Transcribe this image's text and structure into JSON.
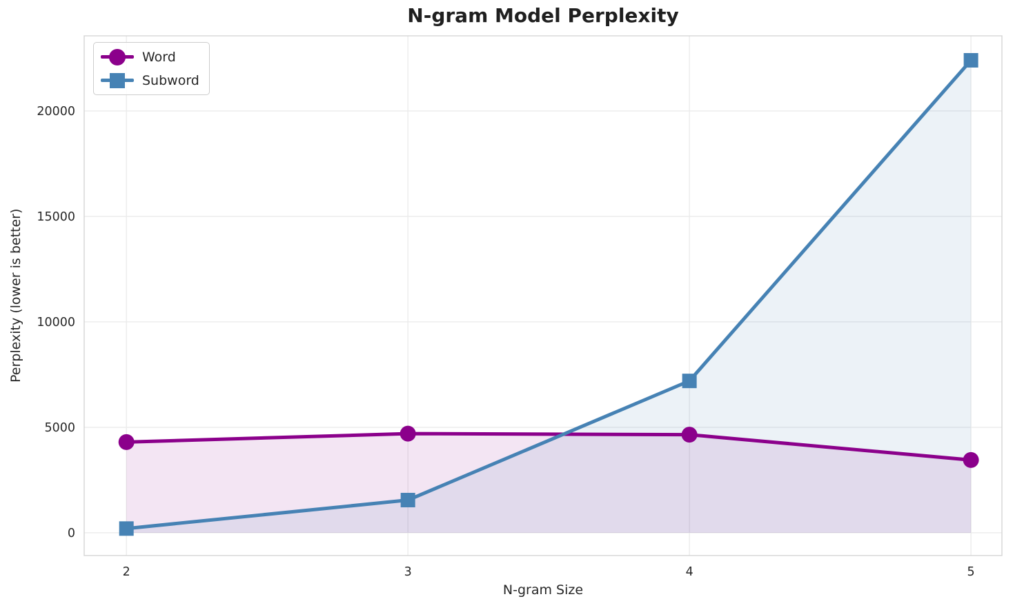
{
  "chart": {
    "title": "N-gram Model Perplexity",
    "xlabel": "N-gram Size",
    "ylabel": "Perplexity (lower is better)"
  },
  "legend": {
    "items": [
      {
        "label": "Word",
        "color": "#8B008B",
        "marker": "circle"
      },
      {
        "label": "Subword",
        "color": "#4682B4",
        "marker": "square"
      }
    ]
  },
  "chart_data": {
    "type": "line",
    "title": "N-gram Model Perplexity",
    "xlabel": "N-gram Size",
    "ylabel": "Perplexity (lower is better)",
    "x": [
      2,
      3,
      4,
      5
    ],
    "series": [
      {
        "name": "Word",
        "color": "#8B008B",
        "marker": "circle",
        "values": [
          4300,
          4700,
          4650,
          3450
        ],
        "fill": true
      },
      {
        "name": "Subword",
        "color": "#4682B4",
        "marker": "square",
        "values": [
          200,
          1550,
          7200,
          22400
        ],
        "fill": true
      }
    ],
    "xticks": [
      2,
      3,
      4,
      5
    ],
    "yticks": [
      0,
      5000,
      10000,
      15000,
      20000
    ],
    "xlim": [
      1.85,
      5.11
    ],
    "ylim": [
      -1080,
      23560
    ],
    "grid": true,
    "legend_position": "upper left",
    "fill_alpha": 0.1,
    "fill_baseline": 0,
    "style_colors": {
      "gridline": "#ebebeb",
      "spine": "#d5d5d5",
      "tick_text": "#262626",
      "title_text": "#1f1f1f"
    }
  }
}
